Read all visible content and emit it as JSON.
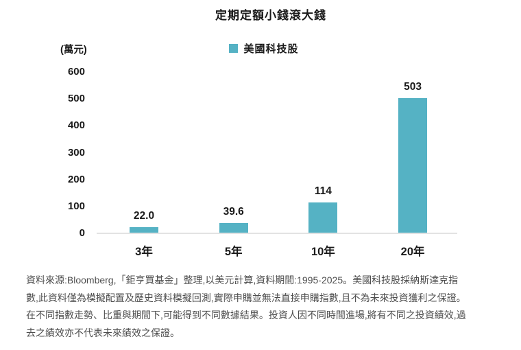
{
  "page": {
    "footer_lines": [
      "資料來源:Bloomberg,「鉅亨買基金」整理,以美元計算,資料期間:1995-2025。美國科技股採納斯達克指",
      "數,此資料僅為模擬配置及歷史資料模擬回測,實際申購並無法直接申購指數,且不為未來投資獲利之保證。",
      "在不同指數走勢、比重與期間下,可能得到不同數據結果。投資人因不同時間進場,將有不同之投資績效,過",
      "去之績效亦不代表未來績效之保證。"
    ]
  },
  "chart_data": {
    "type": "bar",
    "title": "定期定額小錢滾大錢",
    "xlabel": "",
    "ylabel": "(萬元)",
    "unit_label": "(萬元)",
    "categories": [
      "3年",
      "5年",
      "10年",
      "20年"
    ],
    "values": [
      22.0,
      39.6,
      114,
      503
    ],
    "value_labels": [
      "22.0",
      "39.6",
      "114",
      "503"
    ],
    "ylim": [
      0,
      600
    ],
    "yticks": [
      0,
      100,
      200,
      300,
      400,
      500,
      600
    ],
    "grid": false,
    "legend_position": "top-center",
    "legend": [
      {
        "name": "美國科技股",
        "color": "#55b2c4"
      }
    ],
    "bar_color": "#55b2c4",
    "axis_line_color": "#e3e3e3",
    "text_color": "#1a1a1a",
    "footer_color": "#4d4d4d"
  }
}
